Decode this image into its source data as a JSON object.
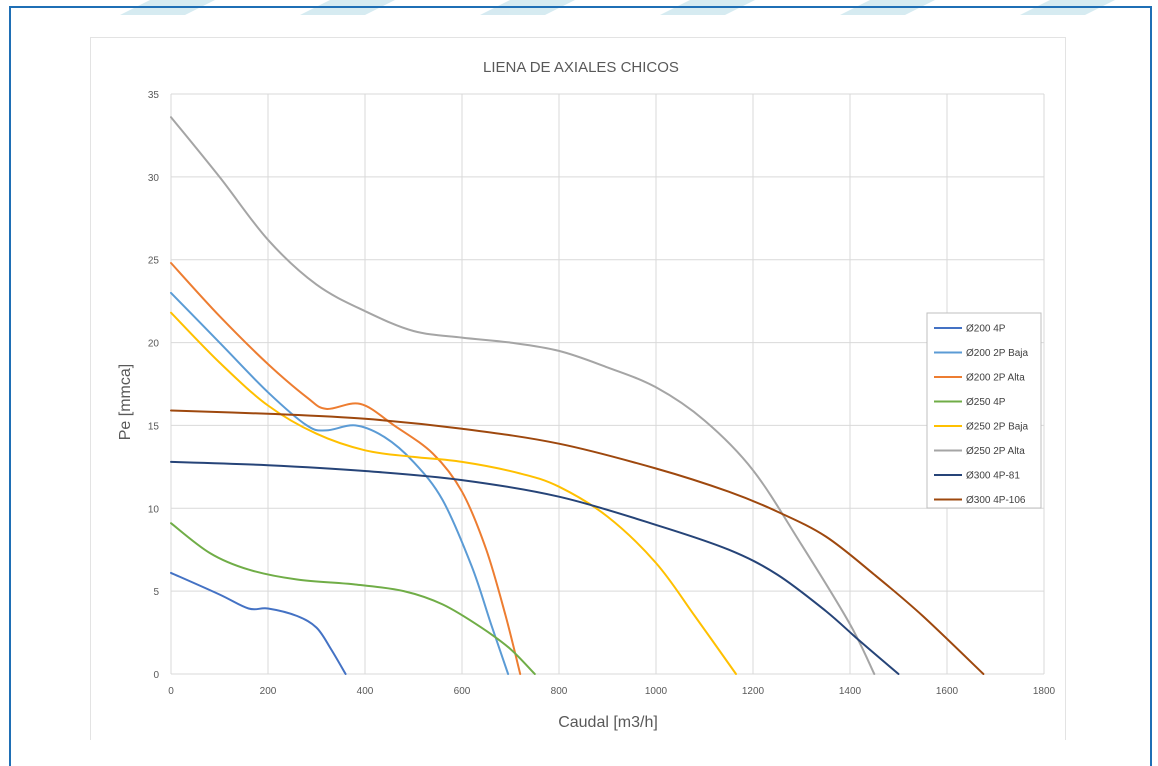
{
  "colors": {
    "frame": "#1f6fb5",
    "stripe": "#cfe7ef",
    "grid": "#d9d9d9",
    "text": "#595959"
  },
  "chart_data": {
    "type": "line",
    "title": "LIENA DE AXIALES CHICOS",
    "xlabel": "Caudal [m3/h]",
    "ylabel": "Pe [mmca]",
    "xlim": [
      0,
      1800
    ],
    "ylim": [
      0,
      35
    ],
    "xticks": [
      0,
      200,
      400,
      600,
      800,
      1000,
      1200,
      1400,
      1600,
      1800
    ],
    "yticks": [
      0,
      5,
      10,
      15,
      20,
      25,
      30,
      35
    ],
    "grid": true,
    "legend_position": "right",
    "series": [
      {
        "name": "Ø200 4P",
        "color": "#4472c4",
        "points": [
          [
            0,
            6.1
          ],
          [
            100,
            4.8
          ],
          [
            160,
            3.95
          ],
          [
            200,
            3.95
          ],
          [
            260,
            3.5
          ],
          [
            300,
            2.8
          ],
          [
            330,
            1.5
          ],
          [
            360,
            0
          ]
        ]
      },
      {
        "name": "Ø200 2P Baja",
        "color": "#5b9bd5",
        "points": [
          [
            0,
            23
          ],
          [
            100,
            20.0
          ],
          [
            200,
            17.0
          ],
          [
            280,
            15.0
          ],
          [
            320,
            14.7
          ],
          [
            380,
            15.0
          ],
          [
            440,
            14.3
          ],
          [
            500,
            12.8
          ],
          [
            560,
            10.5
          ],
          [
            620,
            6.5
          ],
          [
            660,
            3.0
          ],
          [
            695,
            0
          ]
        ]
      },
      {
        "name": "Ø200 2P Alta",
        "color": "#ed7d31",
        "points": [
          [
            0,
            24.8
          ],
          [
            100,
            21.6
          ],
          [
            200,
            18.7
          ],
          [
            280,
            16.7
          ],
          [
            320,
            16.0
          ],
          [
            390,
            16.3
          ],
          [
            460,
            15.0
          ],
          [
            540,
            13.3
          ],
          [
            600,
            11.0
          ],
          [
            650,
            7.5
          ],
          [
            690,
            3.5
          ],
          [
            720,
            0
          ]
        ]
      },
      {
        "name": "Ø250 4P",
        "color": "#70ad47",
        "points": [
          [
            0,
            9.1
          ],
          [
            80,
            7.3
          ],
          [
            160,
            6.3
          ],
          [
            260,
            5.7
          ],
          [
            380,
            5.4
          ],
          [
            480,
            5.0
          ],
          [
            560,
            4.2
          ],
          [
            640,
            2.8
          ],
          [
            700,
            1.5
          ],
          [
            750,
            0
          ]
        ]
      },
      {
        "name": "Ø250 2P Baja",
        "color": "#ffc000",
        "points": [
          [
            0,
            21.8
          ],
          [
            100,
            18.8
          ],
          [
            200,
            16.2
          ],
          [
            300,
            14.5
          ],
          [
            400,
            13.5
          ],
          [
            500,
            13.1
          ],
          [
            600,
            12.8
          ],
          [
            720,
            12.1
          ],
          [
            800,
            11.3
          ],
          [
            900,
            9.5
          ],
          [
            1000,
            6.7
          ],
          [
            1080,
            3.5
          ],
          [
            1165,
            0
          ]
        ]
      },
      {
        "name": "Ø250 2P Alta",
        "color": "#a5a5a5",
        "points": [
          [
            0,
            33.6
          ],
          [
            100,
            30.0
          ],
          [
            200,
            26.2
          ],
          [
            300,
            23.5
          ],
          [
            400,
            21.9
          ],
          [
            500,
            20.7
          ],
          [
            600,
            20.3
          ],
          [
            700,
            20.0
          ],
          [
            800,
            19.5
          ],
          [
            900,
            18.5
          ],
          [
            1000,
            17.3
          ],
          [
            1100,
            15.3
          ],
          [
            1200,
            12.3
          ],
          [
            1300,
            7.8
          ],
          [
            1400,
            3.0
          ],
          [
            1450,
            0
          ]
        ]
      },
      {
        "name": "Ø300 4P-81",
        "color": "#264478",
        "points": [
          [
            0,
            12.8
          ],
          [
            200,
            12.6
          ],
          [
            400,
            12.25
          ],
          [
            600,
            11.7
          ],
          [
            800,
            10.7
          ],
          [
            1000,
            9.0
          ],
          [
            1150,
            7.5
          ],
          [
            1250,
            6.0
          ],
          [
            1350,
            3.8
          ],
          [
            1420,
            2.0
          ],
          [
            1500,
            0
          ]
        ]
      },
      {
        "name": "Ø300 4P-106",
        "color": "#9e480e",
        "points": [
          [
            0,
            15.9
          ],
          [
            200,
            15.7
          ],
          [
            400,
            15.4
          ],
          [
            600,
            14.8
          ],
          [
            800,
            13.9
          ],
          [
            1000,
            12.4
          ],
          [
            1150,
            11.0
          ],
          [
            1250,
            9.8
          ],
          [
            1350,
            8.3
          ],
          [
            1450,
            6.0
          ],
          [
            1550,
            3.5
          ],
          [
            1675,
            0
          ]
        ]
      }
    ]
  }
}
